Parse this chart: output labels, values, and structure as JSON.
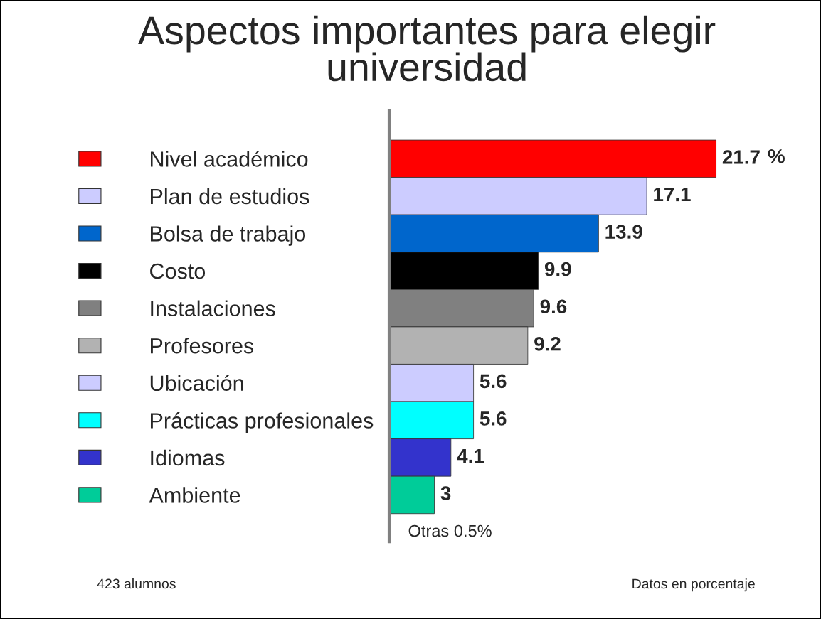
{
  "chart_data": {
    "type": "bar",
    "orientation": "horizontal",
    "title": "Aspectos importantes para elegir universidad",
    "categories": [
      "Nivel académico",
      "Plan de estudios",
      "Bolsa de trabajo",
      "Costo",
      "Instalaciones",
      "Profesores",
      "Ubicación",
      "Prácticas profesionales",
      "Idiomas",
      "Ambiente"
    ],
    "values": [
      21.7,
      17.1,
      13.9,
      9.9,
      9.6,
      9.2,
      5.6,
      5.6,
      4.1,
      3
    ],
    "colors": [
      "#ff0000",
      "#ccccff",
      "#0066cc",
      "#000000",
      "#808080",
      "#b2b2b2",
      "#ccccff",
      "#00ffff",
      "#3333cc",
      "#00cc99"
    ],
    "data_labels": true,
    "tick_labels": "y",
    "annotations": [
      "%",
      "Otras 0.5%",
      "423 alumnos",
      "Datos en porcentaje"
    ]
  }
}
